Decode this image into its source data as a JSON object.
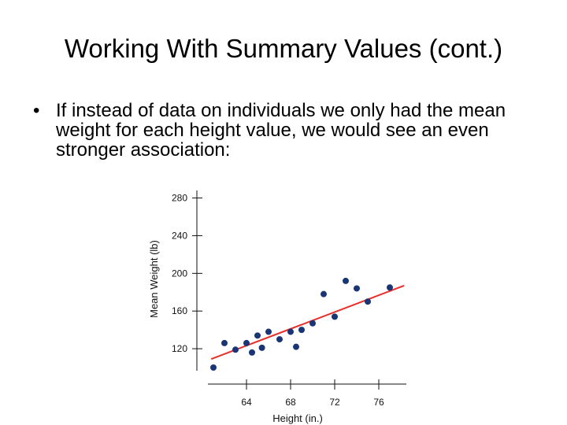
{
  "slide": {
    "title": "Working With Summary Values (cont.)",
    "bullet_symbol": "•",
    "bullet_text": "If instead of data on individuals we only had the mean weight for each height value, we would see an even stronger association:"
  },
  "chart_data": {
    "type": "scatter",
    "title": "",
    "xlabel": "Height (in.)",
    "ylabel": "Mean Weight (lb)",
    "xlim": [
      60.5,
      78.5
    ],
    "ylim": [
      95,
      288
    ],
    "xticks": [
      64,
      68,
      72,
      76
    ],
    "xtick_labels": [
      "64",
      "68",
      "72",
      "76"
    ],
    "yticks": [
      120,
      160,
      200,
      240,
      280
    ],
    "ytick_labels": [
      "120",
      "160",
      "200",
      "240",
      "280"
    ],
    "grid": false,
    "legend": false,
    "points": [
      {
        "x": 61.0,
        "y": 100
      },
      {
        "x": 62.0,
        "y": 126
      },
      {
        "x": 63.0,
        "y": 119
      },
      {
        "x": 64.0,
        "y": 126
      },
      {
        "x": 64.5,
        "y": 116
      },
      {
        "x": 65.0,
        "y": 134
      },
      {
        "x": 65.4,
        "y": 121
      },
      {
        "x": 66.0,
        "y": 138
      },
      {
        "x": 67.0,
        "y": 130
      },
      {
        "x": 68.0,
        "y": 138
      },
      {
        "x": 68.5,
        "y": 122
      },
      {
        "x": 69.0,
        "y": 140
      },
      {
        "x": 70.0,
        "y": 147
      },
      {
        "x": 71.0,
        "y": 178
      },
      {
        "x": 72.0,
        "y": 154
      },
      {
        "x": 73.0,
        "y": 192
      },
      {
        "x": 74.0,
        "y": 184
      },
      {
        "x": 75.0,
        "y": 170
      },
      {
        "x": 77.0,
        "y": 185
      }
    ],
    "fit_line": {
      "x": [
        60.8,
        78.3
      ],
      "y": [
        109,
        187
      ]
    },
    "colors": {
      "points": "#1a3576",
      "fit_line": "#e8302a",
      "axes": "#111111"
    }
  }
}
